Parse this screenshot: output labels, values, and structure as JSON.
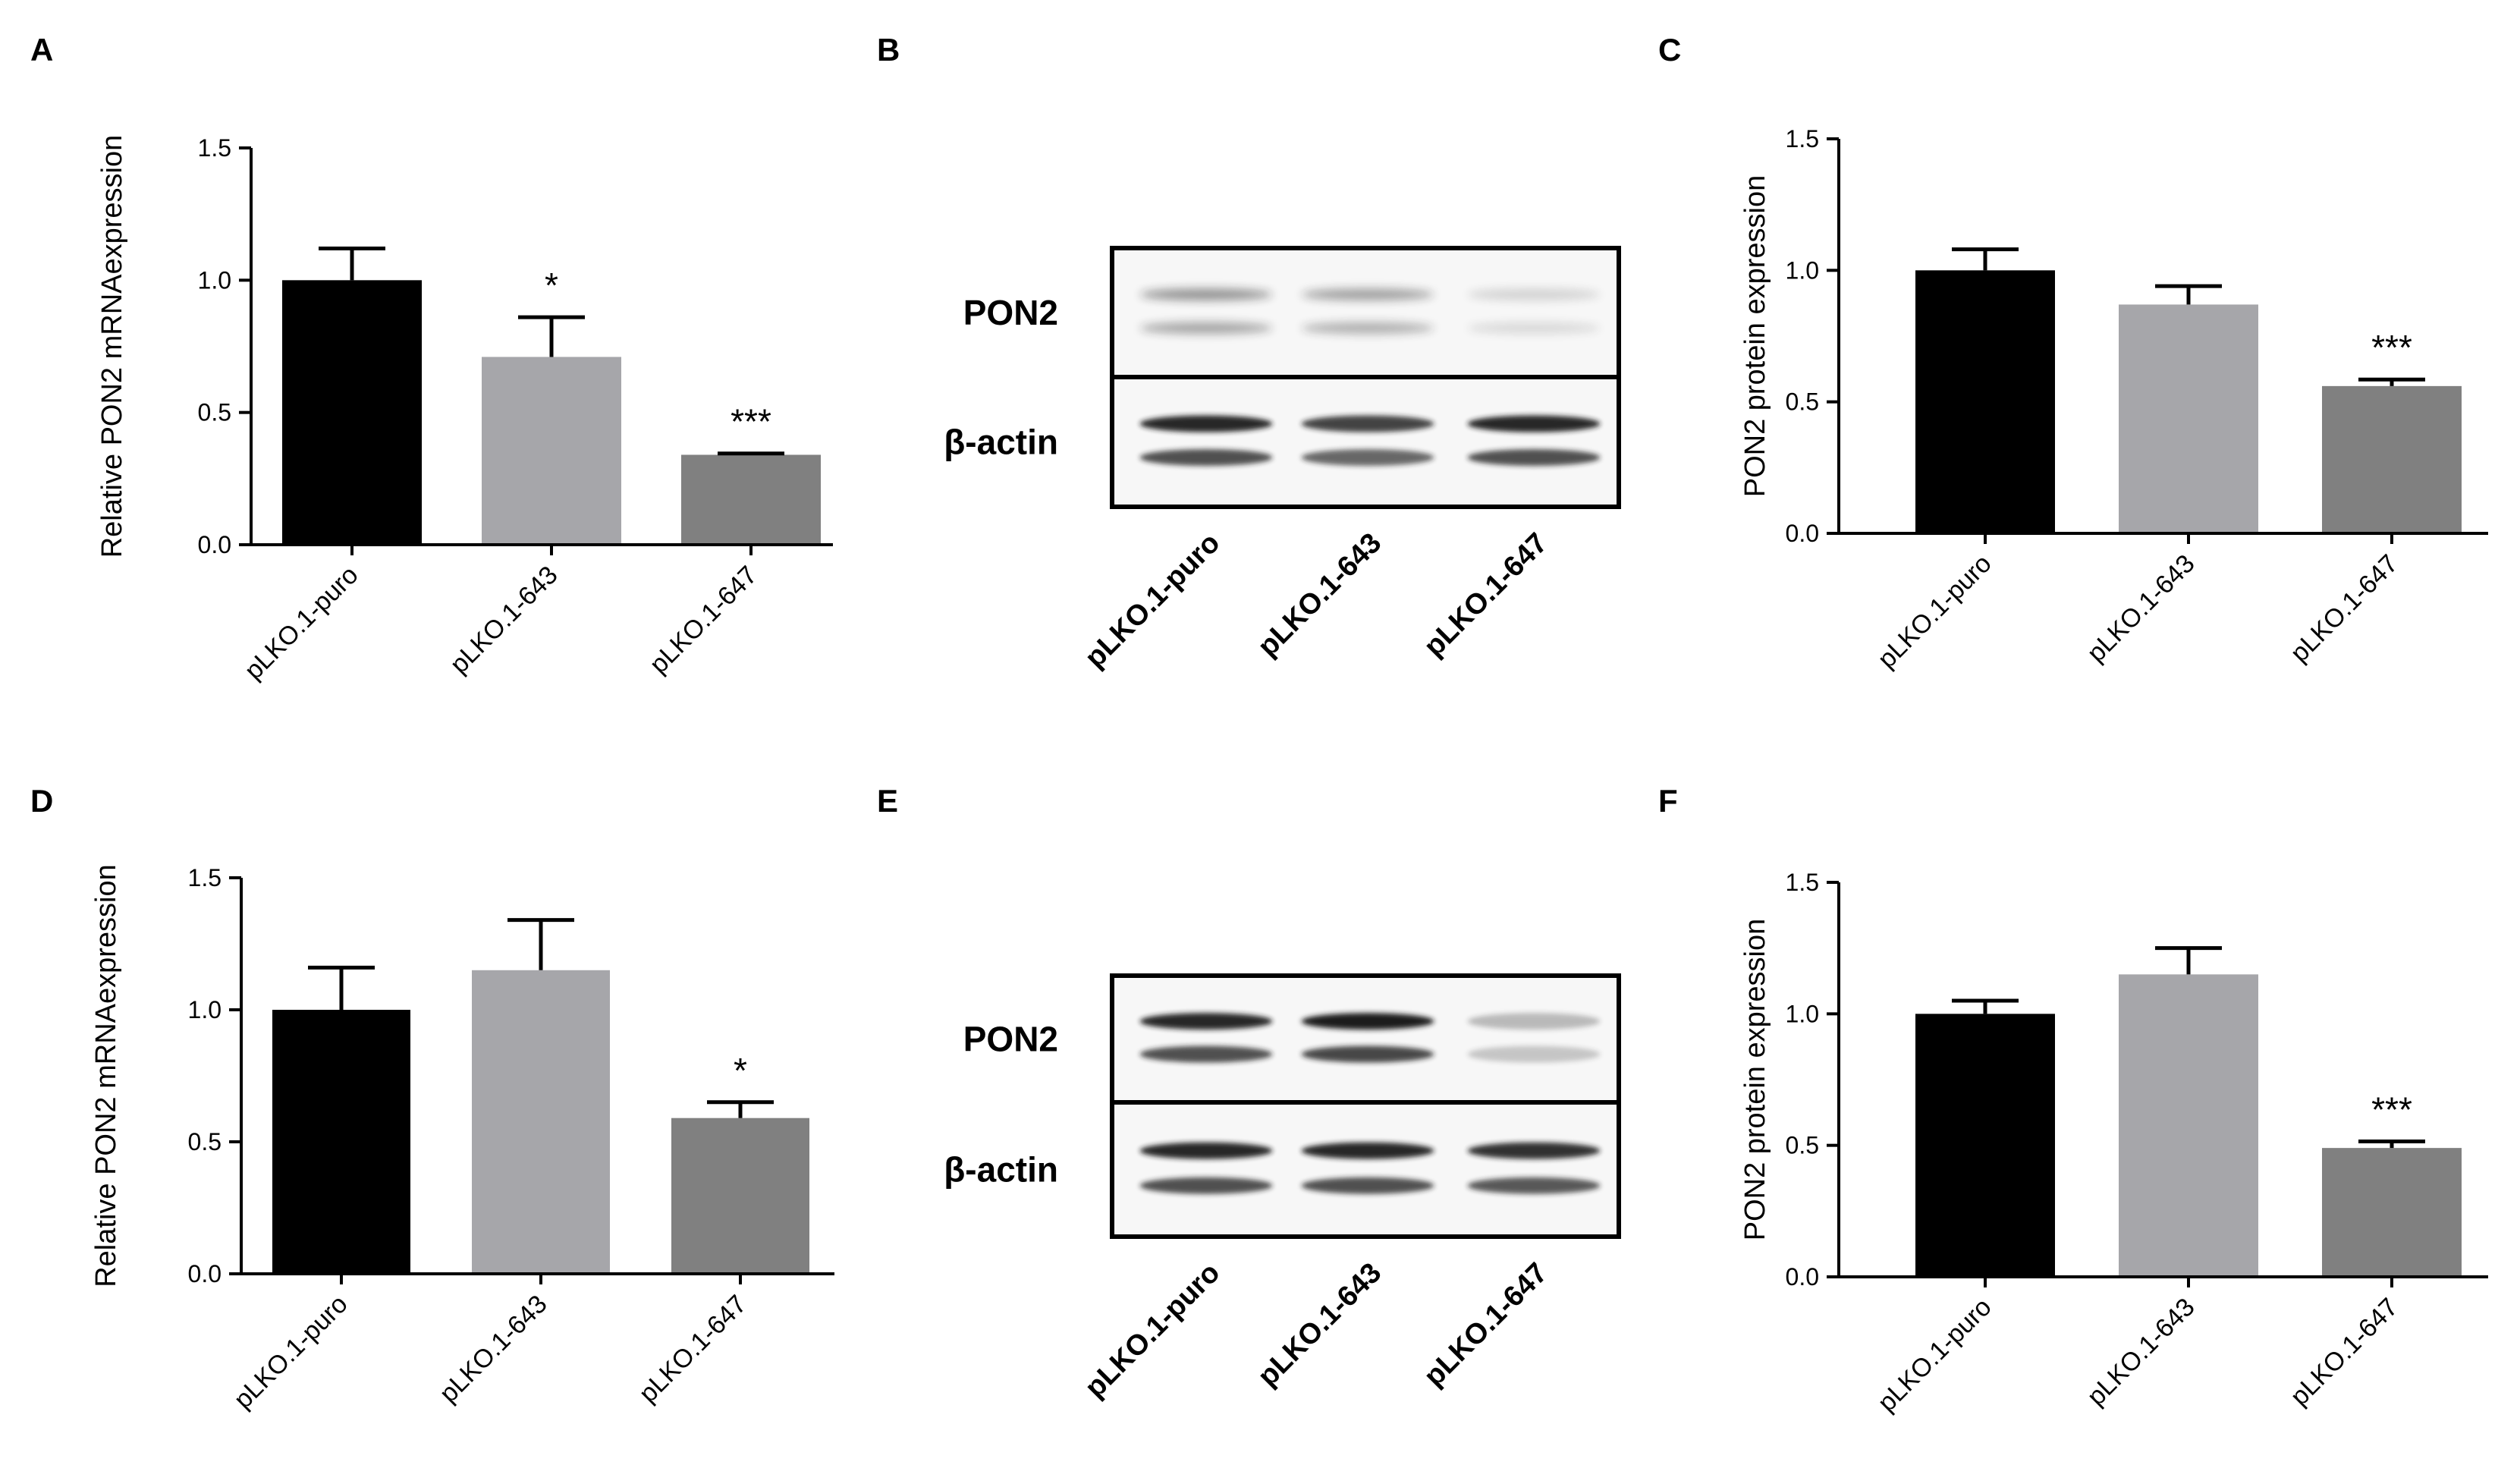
{
  "panels": {
    "A": {
      "letter": "A"
    },
    "B": {
      "letter": "B"
    },
    "C": {
      "letter": "C"
    },
    "D": {
      "letter": "D"
    },
    "E": {
      "letter": "E"
    },
    "F": {
      "letter": "F"
    }
  },
  "colors": {
    "bar_puro": "#000000",
    "bar_643": "#a6a6aa",
    "bar_647": "#808080",
    "axis": "#000000",
    "blot_background": "#f7f7f7"
  },
  "chart_data": [
    {
      "panel": "A",
      "type": "bar",
      "title": "",
      "xlabel": "",
      "ylabel": "Relative PON2 mRNAexpression",
      "ylim": [
        0,
        1.5
      ],
      "yticks": [
        "0.0",
        "0.5",
        "1.0",
        "1.5"
      ],
      "categories": [
        "pLKO.1-puro",
        "pLKO.1-643",
        "pLKO.1-647"
      ],
      "values": [
        1.0,
        0.71,
        0.34
      ],
      "errors": [
        0.12,
        0.15,
        0.005
      ],
      "annotations": [
        "",
        "*",
        "***"
      ],
      "grid": false,
      "legend": "none"
    },
    {
      "panel": "C",
      "type": "bar",
      "title": "",
      "xlabel": "",
      "ylabel": "PON2 protein expression",
      "ylim": [
        0,
        1.5
      ],
      "yticks": [
        "0.0",
        "0.5",
        "1.0",
        "1.5"
      ],
      "categories": [
        "pLKO.1-puro",
        "pLKO.1-643",
        "pLKO.1-647"
      ],
      "values": [
        1.0,
        0.87,
        0.56
      ],
      "errors": [
        0.08,
        0.07,
        0.025
      ],
      "annotations": [
        "",
        "",
        "***"
      ],
      "grid": false,
      "legend": "none"
    },
    {
      "panel": "D",
      "type": "bar",
      "title": "",
      "xlabel": "",
      "ylabel": "Relative PON2 mRNAexpression",
      "ylim": [
        0,
        1.5
      ],
      "yticks": [
        "0.0",
        "0.5",
        "1.0",
        "1.5"
      ],
      "categories": [
        "pLKO.1-puro",
        "pLKO.1-643",
        "pLKO.1-647"
      ],
      "values": [
        1.0,
        1.15,
        0.59
      ],
      "errors": [
        0.16,
        0.19,
        0.06
      ],
      "annotations": [
        "",
        "",
        "*"
      ],
      "grid": false,
      "legend": "none"
    },
    {
      "panel": "F",
      "type": "bar",
      "title": "",
      "xlabel": "",
      "ylabel": "PON2 protein expression",
      "ylim": [
        0,
        1.5
      ],
      "yticks": [
        "0.0",
        "0.5",
        "1.0",
        "1.5"
      ],
      "categories": [
        "pLKO.1-puro",
        "pLKO.1-643",
        "pLKO.1-647"
      ],
      "values": [
        1.0,
        1.15,
        0.49
      ],
      "errors": [
        0.05,
        0.1,
        0.025
      ],
      "annotations": [
        "",
        "",
        "***"
      ],
      "grid": false,
      "legend": "none"
    }
  ],
  "blots": [
    {
      "panel": "B",
      "rows": [
        {
          "label": "PON2",
          "pattern": "doublet-faint",
          "intensity": [
            0.28,
            0.24,
            0.1
          ]
        },
        {
          "label": "β-actin",
          "pattern": "doublet-strong",
          "intensity": [
            0.95,
            0.82,
            0.95
          ]
        }
      ],
      "lanes": [
        "pLKO.1-puro",
        "pLKO.1-643",
        "pLKO.1-647"
      ]
    },
    {
      "panel": "E",
      "rows": [
        {
          "label": "PON2",
          "pattern": "doublet-strong",
          "intensity": [
            0.95,
            1.0,
            0.28
          ]
        },
        {
          "label": "β-actin",
          "pattern": "doublet-strong",
          "intensity": [
            0.95,
            0.95,
            0.9
          ]
        }
      ],
      "lanes": [
        "pLKO.1-puro",
        "pLKO.1-643",
        "pLKO.1-647"
      ]
    }
  ]
}
